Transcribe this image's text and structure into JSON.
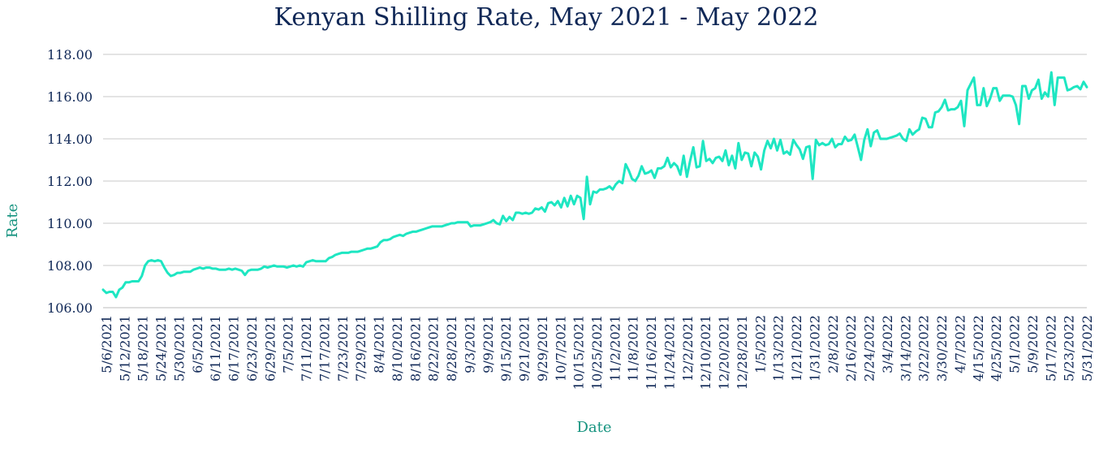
{
  "chart_data": {
    "type": "line",
    "title": "Kenyan Shilling Rate, May 2021 - May 2022",
    "xlabel": "Date",
    "ylabel": "Rate",
    "ylim": [
      106,
      118
    ],
    "yticks": [
      "106.00",
      "108.00",
      "110.00",
      "112.00",
      "114.00",
      "116.00",
      "118.00"
    ],
    "ytick_values": [
      106,
      108,
      110,
      112,
      114,
      116,
      118
    ],
    "grid": true,
    "legend": "none",
    "color": "#1ee6c2",
    "xticks": [
      "5/6/2021",
      "5/12/2021",
      "5/18/2021",
      "5/24/2021",
      "5/30/2021",
      "6/5/2021",
      "6/11/2021",
      "6/17/2021",
      "6/23/2021",
      "6/29/2021",
      "7/5/2021",
      "7/11/2021",
      "7/17/2021",
      "7/23/2021",
      "7/29/2021",
      "8/4/2021",
      "8/10/2021",
      "8/16/2021",
      "8/22/2021",
      "8/28/2021",
      "9/3/2021",
      "9/9/2021",
      "9/15/2021",
      "9/21/2021",
      "9/29/2021",
      "10/7/2021",
      "10/15/2021",
      "10/25/2021",
      "11/2/2021",
      "11/8/2021",
      "11/16/2021",
      "11/24/2021",
      "12/2/2021",
      "12/10/2021",
      "12/20/2021",
      "12/28/2021",
      "1/5/2022",
      "1/13/2022",
      "1/21/2022",
      "1/31/2022",
      "2/8/2022",
      "2/16/2022",
      "2/24/2022",
      "3/4/2022",
      "3/14/2022",
      "3/22/2022",
      "3/30/2022",
      "4/7/2022",
      "4/15/2022",
      "4/25/2022",
      "5/1/2022",
      "5/9/2022",
      "5/17/2022",
      "5/23/2022",
      "5/31/2022"
    ],
    "series": [
      {
        "values": [
          106.85,
          106.7,
          106.75,
          106.75,
          106.5,
          106.85,
          106.95,
          107.2,
          107.2,
          107.25,
          107.25,
          107.25,
          107.5,
          108.0,
          108.2,
          108.25,
          108.2,
          108.25,
          108.2,
          107.9,
          107.65,
          107.5,
          107.55,
          107.65,
          107.65,
          107.7,
          107.7,
          107.7,
          107.8,
          107.85,
          107.9,
          107.85,
          107.9,
          107.9,
          107.85,
          107.85,
          107.8,
          107.8,
          107.8,
          107.85,
          107.8,
          107.85,
          107.8,
          107.75,
          107.55,
          107.75,
          107.8,
          107.8,
          107.8,
          107.85,
          107.95,
          107.9,
          107.95,
          108.0,
          107.95,
          107.95,
          107.95,
          107.9,
          107.95,
          108.0,
          107.95,
          108.0,
          107.95,
          108.15,
          108.2,
          108.25,
          108.2,
          108.2,
          108.2,
          108.2,
          108.35,
          108.4,
          108.5,
          108.55,
          108.6,
          108.6,
          108.6,
          108.65,
          108.65,
          108.65,
          108.7,
          108.75,
          108.8,
          108.8,
          108.85,
          108.9,
          109.1,
          109.2,
          109.2,
          109.25,
          109.35,
          109.4,
          109.45,
          109.4,
          109.5,
          109.55,
          109.6,
          109.6,
          109.65,
          109.7,
          109.75,
          109.8,
          109.85,
          109.85,
          109.85,
          109.85,
          109.9,
          109.95,
          110.0,
          110.0,
          110.05,
          110.05,
          110.05,
          110.05,
          109.85,
          109.9,
          109.9,
          109.9,
          109.95,
          110.0,
          110.05,
          110.15,
          110.0,
          109.95,
          110.35,
          110.1,
          110.3,
          110.15,
          110.5,
          110.5,
          110.45,
          110.5,
          110.45,
          110.5,
          110.7,
          110.65,
          110.75,
          110.55,
          110.95,
          111.0,
          110.85,
          111.05,
          110.75,
          111.2,
          110.8,
          111.3,
          110.9,
          111.3,
          111.2,
          110.2,
          112.2,
          110.9,
          111.5,
          111.45,
          111.6,
          111.6,
          111.65,
          111.75,
          111.6,
          111.85,
          112.0,
          111.9,
          112.8,
          112.5,
          112.1,
          112.0,
          112.25,
          112.7,
          112.35,
          112.4,
          112.5,
          112.15,
          112.6,
          112.6,
          112.7,
          113.1,
          112.65,
          112.85,
          112.7,
          112.3,
          113.2,
          112.2,
          112.95,
          113.6,
          112.65,
          112.7,
          113.9,
          112.95,
          113.05,
          112.85,
          113.1,
          113.15,
          112.95,
          113.45,
          112.75,
          113.2,
          112.6,
          113.8,
          113.0,
          113.35,
          113.3,
          112.7,
          113.35,
          113.15,
          112.55,
          113.45,
          113.9,
          113.55,
          114.0,
          113.45,
          113.95,
          113.3,
          113.4,
          113.25,
          113.95,
          113.7,
          113.5,
          113.05,
          113.6,
          113.65,
          112.1,
          113.95,
          113.7,
          113.8,
          113.7,
          113.75,
          114.0,
          113.6,
          113.75,
          113.75,
          114.1,
          113.9,
          113.95,
          114.2,
          113.6,
          113.0,
          113.95,
          114.45,
          113.65,
          114.3,
          114.4,
          114.0,
          114.0,
          114.0,
          114.05,
          114.1,
          114.15,
          114.25,
          114.0,
          113.9,
          114.45,
          114.2,
          114.35,
          114.45,
          115.0,
          114.95,
          114.55,
          114.55,
          115.25,
          115.3,
          115.5,
          115.85,
          115.35,
          115.4,
          115.4,
          115.5,
          115.8,
          114.6,
          116.3,
          116.6,
          116.9,
          115.6,
          115.6,
          116.4,
          115.55,
          115.9,
          116.4,
          116.4,
          115.8,
          116.05,
          116.05,
          116.05,
          116.0,
          115.6,
          114.7,
          116.5,
          116.5,
          115.9,
          116.3,
          116.4,
          116.8,
          115.9,
          116.2,
          116.0,
          117.15,
          115.6,
          116.9,
          116.9,
          116.9,
          116.3,
          116.35,
          116.45,
          116.5,
          116.35,
          116.7,
          116.45
        ]
      }
    ]
  }
}
